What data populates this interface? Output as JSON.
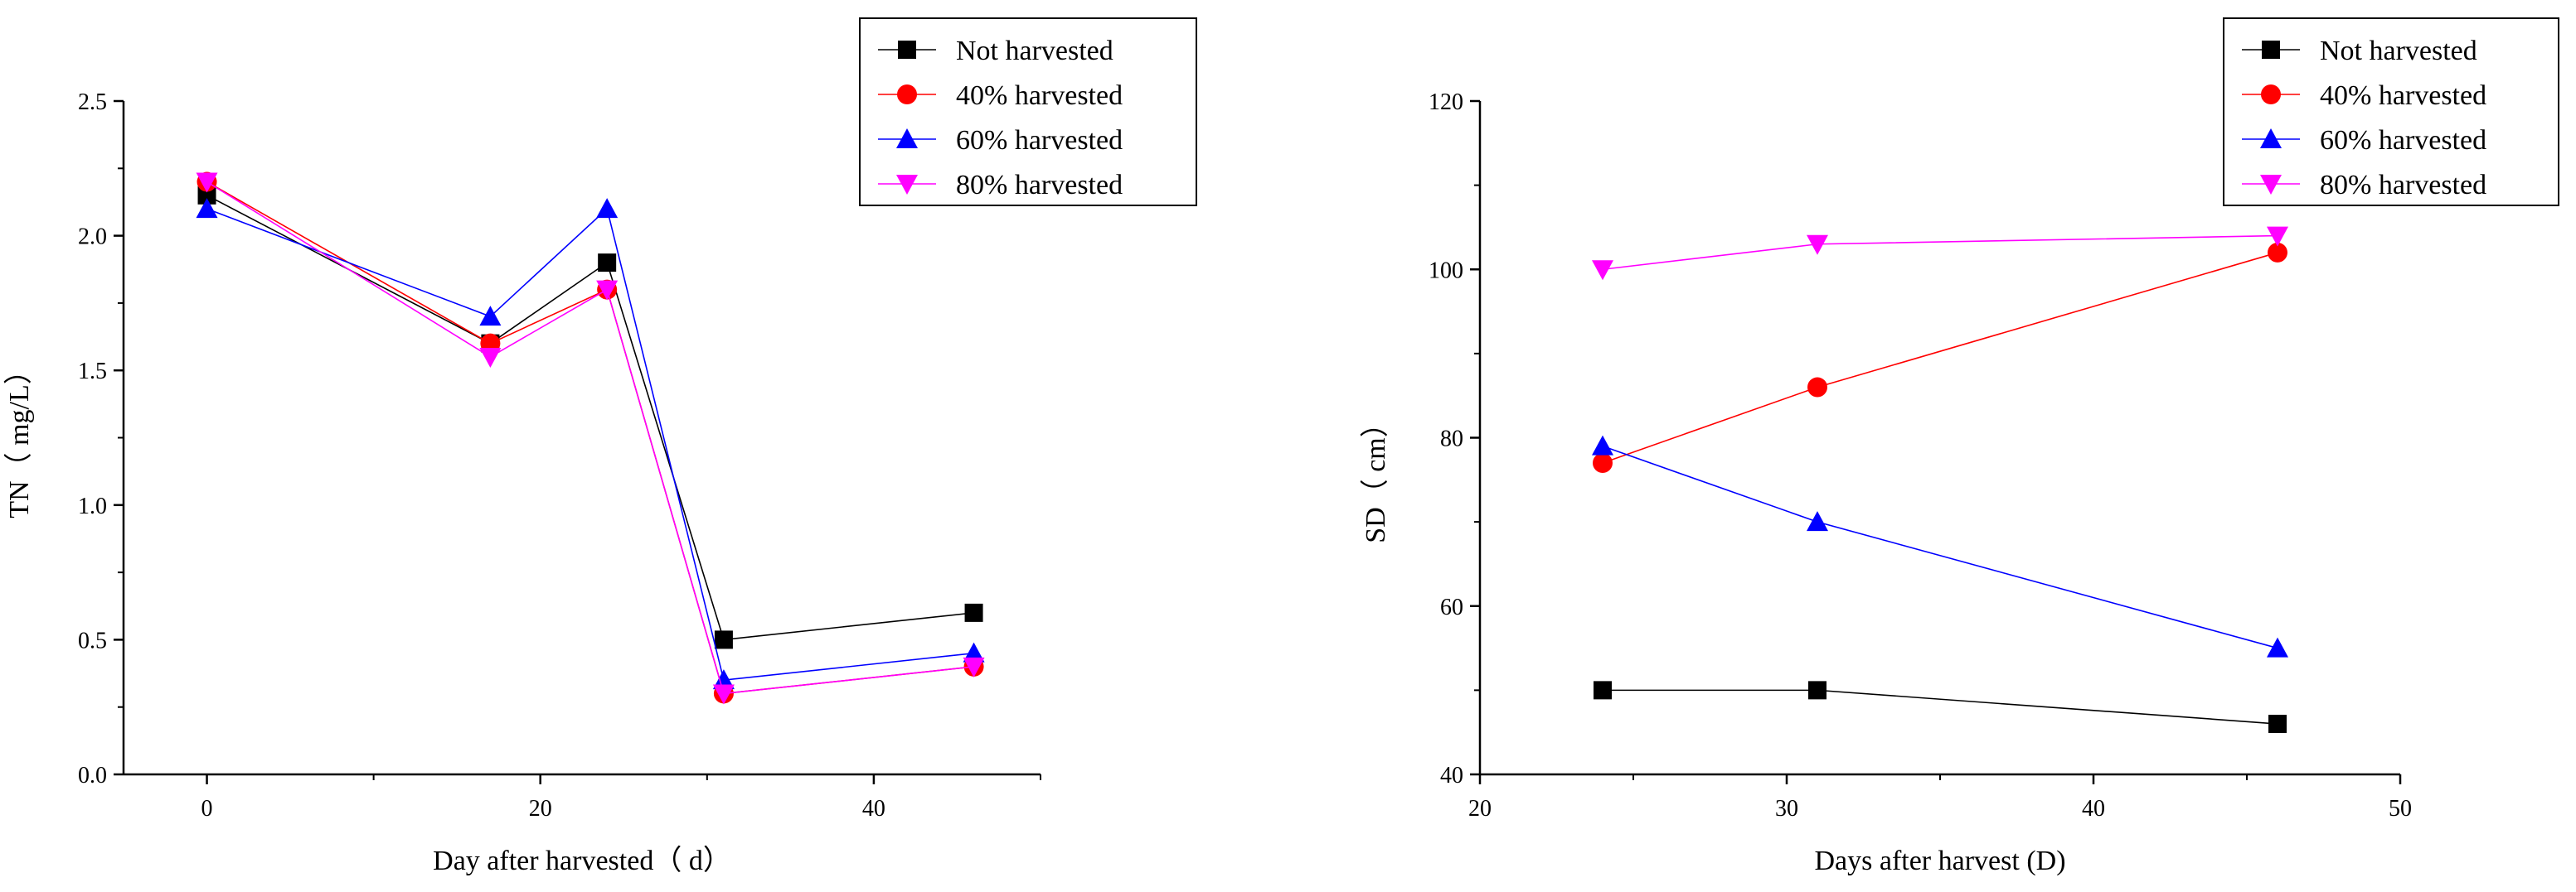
{
  "chart_data": [
    {
      "type": "line",
      "xlabel": "Day after harvested（ d）",
      "ylabel": "TN（ mg/L）",
      "xlim": [
        -5,
        50
      ],
      "ylim": [
        0,
        2.5
      ],
      "xticks": [
        0,
        20,
        40
      ],
      "yticks": [
        0.0,
        0.5,
        1.0,
        1.5,
        2.0,
        2.5
      ],
      "ytick_labels": [
        "0.0",
        "0.5",
        "1.0",
        "1.5",
        "2.0",
        "2.5"
      ],
      "grid": false,
      "legend_position": "top-right",
      "x": [
        0,
        17,
        24,
        31,
        46
      ],
      "series": [
        {
          "name": "Not harvested",
          "color": "#000000",
          "marker": "square",
          "values": [
            2.15,
            1.6,
            1.9,
            0.5,
            0.6
          ]
        },
        {
          "name": "40% harvested",
          "color": "#ff0000",
          "marker": "circle",
          "values": [
            2.2,
            1.6,
            1.8,
            0.3,
            0.4
          ]
        },
        {
          "name": "60% harvested",
          "color": "#0000ff",
          "marker": "triangle-up",
          "values": [
            2.1,
            1.7,
            2.1,
            0.35,
            0.45
          ]
        },
        {
          "name": "80% harvested",
          "color": "#ff00ff",
          "marker": "triangle-down",
          "values": [
            2.2,
            1.55,
            1.8,
            0.3,
            0.4
          ]
        }
      ]
    },
    {
      "type": "line",
      "xlabel": "Days after harvest (D)",
      "ylabel": "SD（ cm）",
      "xlim": [
        20,
        50
      ],
      "ylim": [
        40,
        120
      ],
      "xticks": [
        20,
        30,
        40,
        50
      ],
      "yticks": [
        40,
        60,
        80,
        100,
        120
      ],
      "ytick_labels": [
        "40",
        "60",
        "80",
        "100",
        "120"
      ],
      "grid": false,
      "legend_position": "top-right",
      "x": [
        24,
        31,
        46
      ],
      "series": [
        {
          "name": "Not harvested",
          "color": "#000000",
          "marker": "square",
          "values": [
            50,
            50,
            46
          ]
        },
        {
          "name": "40% harvested",
          "color": "#ff0000",
          "marker": "circle",
          "values": [
            77,
            86,
            102
          ]
        },
        {
          "name": "60%  harvested",
          "color": "#0000ff",
          "marker": "triangle-up",
          "values": [
            79,
            70,
            55
          ]
        },
        {
          "name": "80%  harvested",
          "color": "#ff00ff",
          "marker": "triangle-down",
          "values": [
            100,
            103,
            104
          ]
        }
      ]
    }
  ]
}
